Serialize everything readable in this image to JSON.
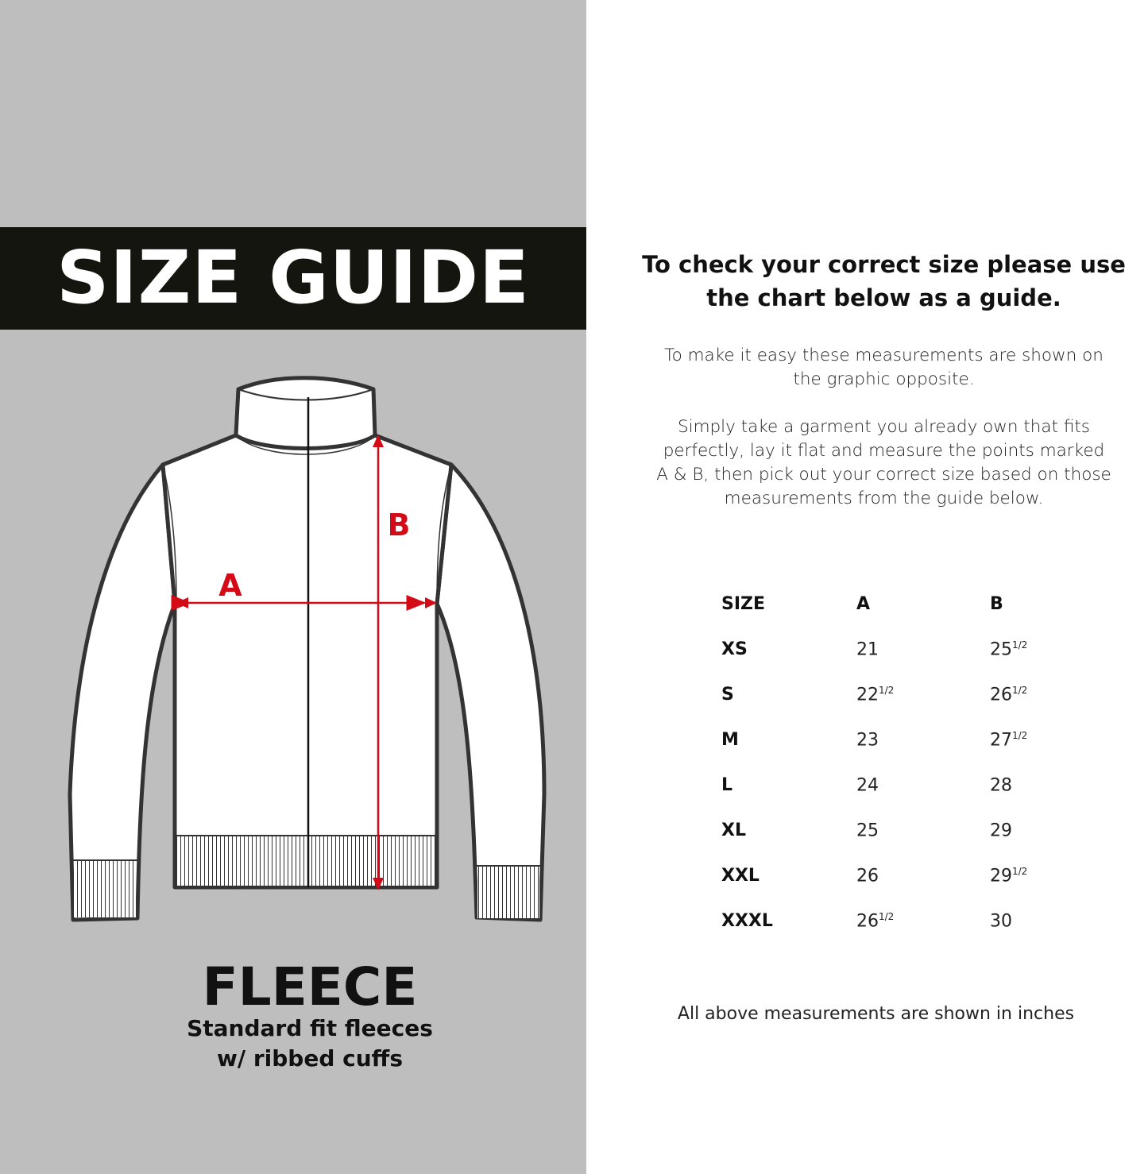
{
  "left_panel": {
    "title": "SIZE GUIDE",
    "product": "FLEECE",
    "subtitle_line1": "Standard fit fleeces",
    "subtitle_line2": "w/ ribbed cuffs",
    "diagram_labels": {
      "a": "A",
      "b": "B"
    },
    "colors": {
      "background": "#bebebe",
      "band": "#15150f",
      "measure": "#d40b16"
    }
  },
  "right_panel": {
    "heading_line1": "To check your correct size please use",
    "heading_line2": "the chart below as a guide.",
    "para1_line1": "To make it easy these measurements are shown on",
    "para1_line2": "the graphic opposite.",
    "para2_line1": "Simply take a garment you already own that fits",
    "para2_line2": "perfectly, lay it flat and measure the points marked",
    "para2_line3": "A & B, then pick out your correct size based on those",
    "para2_line4": "measurements from the guide below.",
    "table": {
      "headers": [
        "SIZE",
        "A",
        "B"
      ],
      "rows": [
        {
          "size": "XS",
          "a": "21",
          "a_frac": "",
          "b": "25",
          "b_frac": "1/2"
        },
        {
          "size": "S",
          "a": "22",
          "a_frac": "1/2",
          "b": "26",
          "b_frac": "1/2"
        },
        {
          "size": "M",
          "a": "23",
          "a_frac": "",
          "b": "27",
          "b_frac": "1/2"
        },
        {
          "size": "L",
          "a": "24",
          "a_frac": "",
          "b": "28",
          "b_frac": ""
        },
        {
          "size": "XL",
          "a": "25",
          "a_frac": "",
          "b": "29",
          "b_frac": ""
        },
        {
          "size": "XXL",
          "a": "26",
          "a_frac": "",
          "b": "29",
          "b_frac": "1/2"
        },
        {
          "size": "XXXL",
          "a": "26",
          "a_frac": "1/2",
          "b": "30",
          "b_frac": ""
        }
      ]
    },
    "note": "All above measurements are shown in inches"
  }
}
